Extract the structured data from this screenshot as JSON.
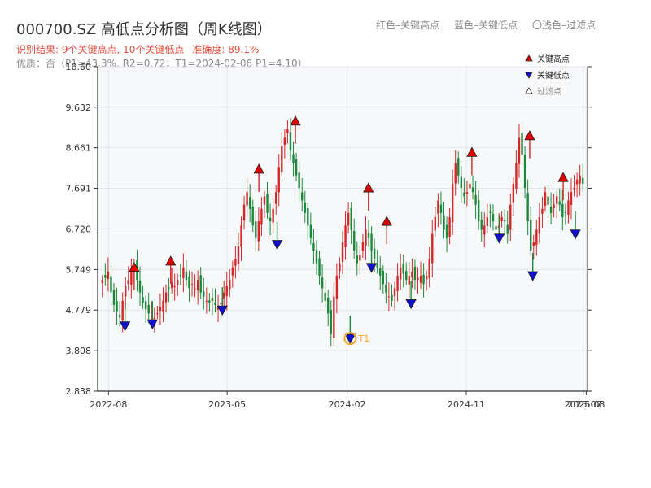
{
  "header": {
    "title": "000700.SZ 高低点分析图（周K线图）",
    "result_text": "识别结果: 9个关键高点, 10个关键低点",
    "accuracy_text": "准确度: 89.1%",
    "quality_text": "优质：否（P1=43.3%, R2=0.72；T1=2024-02-08 P1=4.10）"
  },
  "legend_top": {
    "red_label": "红色–关键高点",
    "blue_label": "蓝色–关键低点",
    "filtered_label": "〇浅色–过滤点"
  },
  "colors": {
    "up": "#d62728",
    "down": "#1a8a3a",
    "high_marker": "#e00000",
    "low_marker": "#1010d0",
    "t1_marker": "#f5a623",
    "plot_bg": "#f7f8fa",
    "grid": "#e3e6ea"
  },
  "chart_data": {
    "type": "candlestick",
    "x_axis": {
      "type": "time",
      "range": [
        "2022-07-07",
        "2025-08-07"
      ],
      "ticks": [
        {
          "date": "2022-08-01",
          "label": "2022-08"
        },
        {
          "date": "2023-05-01",
          "label": "2023-05"
        },
        {
          "date": "2024-02-01",
          "label": "2024-02"
        },
        {
          "date": "2024-11-01",
          "label": "2024-11"
        },
        {
          "date": "2025-07-28",
          "label": "2025-07"
        },
        {
          "date": "2025-08-04",
          "label": "2025-08"
        }
      ]
    },
    "y_axis": {
      "range": [
        2.838,
        10.6
      ],
      "ticks": [
        2.838,
        3.808,
        4.779,
        5.749,
        6.72,
        7.691,
        8.661,
        9.632,
        10.6
      ],
      "tick_labels": [
        "2.838",
        "3.808",
        "4.779",
        "5.749",
        "6.720",
        "7.691",
        "8.661",
        "9.632",
        "10.60"
      ]
    },
    "grid": true,
    "series_closes": [
      5.5,
      5.55,
      5.7,
      5.2,
      4.9,
      4.75,
      4.6,
      5.0,
      5.35,
      5.5,
      5.7,
      5.85,
      5.5,
      5.2,
      4.95,
      4.8,
      4.7,
      4.65,
      4.6,
      4.7,
      4.85,
      5.0,
      5.2,
      5.3,
      5.45,
      5.35,
      5.5,
      5.6,
      5.8,
      5.5,
      5.3,
      5.4,
      5.3,
      5.5,
      5.2,
      5.1,
      5.0,
      4.95,
      5.0,
      4.9,
      4.85,
      4.95,
      5.2,
      5.35,
      5.5,
      5.8,
      6.0,
      6.3,
      6.8,
      7.3,
      7.6,
      7.2,
      6.8,
      6.5,
      6.9,
      7.2,
      7.5,
      7.1,
      6.9,
      7.2,
      7.6,
      8.2,
      8.7,
      8.9,
      9.1,
      8.6,
      8.3,
      8.0,
      7.7,
      7.4,
      7.1,
      6.8,
      6.5,
      6.2,
      5.9,
      5.6,
      5.3,
      5.0,
      4.7,
      4.2,
      5.1,
      5.6,
      5.9,
      6.4,
      6.8,
      7.1,
      6.7,
      6.2,
      5.9,
      6.1,
      6.4,
      6.7,
      6.5,
      6.2,
      6.0,
      5.8,
      5.6,
      5.4,
      5.2,
      5.1,
      5.0,
      5.3,
      5.6,
      5.8,
      5.65,
      5.5,
      5.6,
      5.7,
      5.5,
      5.55,
      5.6,
      5.4,
      5.6,
      6.0,
      6.6,
      7.0,
      7.4,
      7.1,
      6.7,
      6.5,
      7.0,
      7.8,
      8.3,
      8.0,
      7.7,
      7.5,
      7.6,
      7.8,
      7.6,
      7.3,
      6.9,
      6.7,
      6.8,
      7.0,
      7.1,
      6.9,
      6.7,
      6.8,
      7.0,
      6.9,
      6.6,
      7.3,
      7.8,
      8.3,
      8.9,
      8.5,
      7.7,
      6.9,
      6.2,
      6.4,
      6.7,
      7.0,
      7.2,
      7.6,
      7.3,
      7.1,
      7.3,
      7.5,
      7.3,
      7.0,
      7.1,
      7.4,
      7.6,
      7.7,
      7.9,
      8.0,
      7.8
    ],
    "key_highs": [
      {
        "date": "2022-09-29",
        "value": 5.8
      },
      {
        "date": "2022-12-22",
        "value": 5.95
      },
      {
        "date": "2023-07-13",
        "value": 8.15
      },
      {
        "date": "2023-10-05",
        "value": 9.3
      },
      {
        "date": "2024-03-21",
        "value": 7.7
      },
      {
        "date": "2024-05-02",
        "value": 6.9
      },
      {
        "date": "2024-11-14",
        "value": 8.55
      },
      {
        "date": "2025-03-27",
        "value": 8.95
      },
      {
        "date": "2025-06-12",
        "value": 7.95
      }
    ],
    "key_lows": [
      {
        "date": "2022-09-08",
        "value": 4.4
      },
      {
        "date": "2022-11-10",
        "value": 4.45
      },
      {
        "date": "2023-04-20",
        "value": 4.78
      },
      {
        "date": "2023-08-24",
        "value": 6.35
      },
      {
        "date": "2024-02-08",
        "value": 4.1
      },
      {
        "date": "2024-03-28",
        "value": 5.8
      },
      {
        "date": "2024-06-27",
        "value": 4.93
      },
      {
        "date": "2025-01-16",
        "value": 6.5
      },
      {
        "date": "2025-04-03",
        "value": 5.6
      },
      {
        "date": "2025-07-10",
        "value": 6.6
      }
    ],
    "t1": {
      "date": "2024-02-08",
      "value": 4.1,
      "label": "T1"
    },
    "legend": {
      "position": "top-right",
      "items": [
        {
          "label": "关键高点",
          "type": "high"
        },
        {
          "label": "关键低点",
          "type": "low"
        },
        {
          "label": "过滤点",
          "type": "filtered"
        }
      ]
    }
  }
}
